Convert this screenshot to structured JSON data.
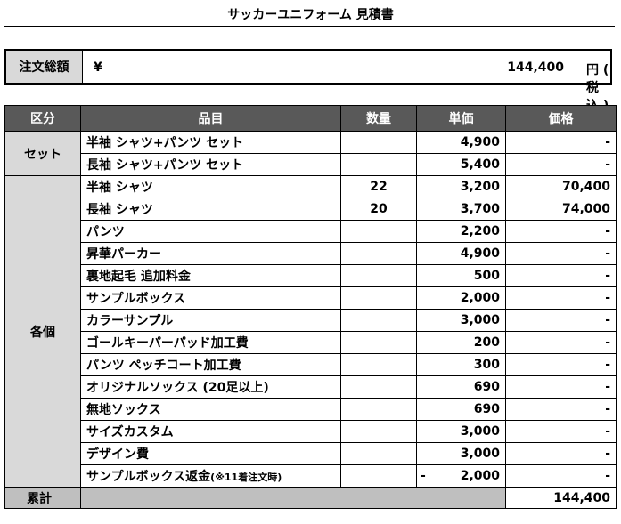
{
  "title": "サッカーユニフォーム 見積書",
  "total": {
    "label": "注文総額",
    "currency": "¥",
    "amount": "144,400",
    "unit": "円 ( 税込 )"
  },
  "table": {
    "headers": [
      "区分",
      "品目",
      "数量",
      "単価",
      "価格"
    ],
    "groups": [
      {
        "category": "セット",
        "rows": [
          {
            "item": "半袖 シャツ+パンツ セット",
            "qty": "",
            "unit_price": "4,900",
            "price": "-"
          },
          {
            "item": "長袖 シャツ+パンツ セット",
            "qty": "",
            "unit_price": "5,400",
            "price": "-"
          }
        ]
      },
      {
        "category": "各個",
        "rows": [
          {
            "item": "半袖 シャツ",
            "qty": "22",
            "unit_price": "3,200",
            "price": "70,400"
          },
          {
            "item": "長袖 シャツ",
            "qty": "20",
            "unit_price": "3,700",
            "price": "74,000"
          },
          {
            "item": "パンツ",
            "qty": "",
            "unit_price": "2,200",
            "price": "-"
          },
          {
            "item": "昇華パーカー",
            "qty": "",
            "unit_price": "4,900",
            "price": "-"
          },
          {
            "item": "裏地起毛 追加料金",
            "qty": "",
            "unit_price": "500",
            "price": "-"
          },
          {
            "item": "サンプルボックス",
            "qty": "",
            "unit_price": "2,000",
            "price": "-"
          },
          {
            "item": "カラーサンプル",
            "qty": "",
            "unit_price": "3,000",
            "price": "-"
          },
          {
            "item": "ゴールキーパーパッド加工費",
            "qty": "",
            "unit_price": "200",
            "price": "-"
          },
          {
            "item": "パンツ ペッチコート加工費",
            "qty": "",
            "unit_price": "300",
            "price": "-"
          },
          {
            "item": "オリジナルソックス (20足以上)",
            "qty": "",
            "unit_price": "690",
            "price": "-"
          },
          {
            "item": "無地ソックス",
            "qty": "",
            "unit_price": "690",
            "price": "-"
          },
          {
            "item": "サイズカスタム",
            "qty": "",
            "unit_price": "3,000",
            "price": "-"
          },
          {
            "item": "デザイン費",
            "qty": "",
            "unit_price": "3,000",
            "price": "-"
          },
          {
            "item": "サンプルボックス返金",
            "note": "(※11着注文時)",
            "qty": "",
            "unit_price_sign": "-",
            "unit_price": "2,000",
            "price": "-"
          }
        ]
      }
    ],
    "summary": {
      "label": "累計",
      "value": "144,400"
    }
  }
}
